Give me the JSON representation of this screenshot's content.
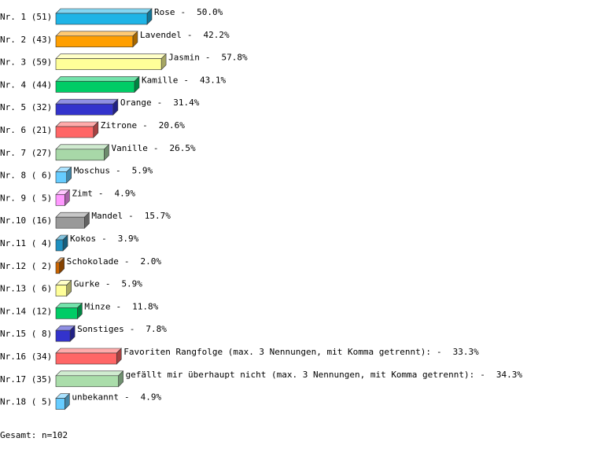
{
  "chart_data": {
    "type": "bar3d",
    "row_labels": [
      "Nr. 1 (51)",
      "Nr. 2 (43)",
      "Nr. 3 (59)",
      "Nr. 4 (44)",
      "Nr. 5 (32)",
      "Nr. 6 (21)",
      "Nr. 7 (27)",
      "Nr. 8 ( 6)",
      "Nr. 9 ( 5)",
      "Nr.10 (16)",
      "Nr.11 ( 4)",
      "Nr.12 ( 2)",
      "Nr.13 ( 6)",
      "Nr.14 (12)",
      "Nr.15 ( 8)",
      "Nr.16 (34)",
      "Nr.17 (35)",
      "Nr.18 ( 5)"
    ],
    "categories": [
      "Rose",
      "Lavendel",
      "Jasmin",
      "Kamille",
      "Orange",
      "Zitrone",
      "Vanille",
      "Moschus",
      "Zimt",
      "Mandel",
      "Kokos",
      "Schokolade",
      "Gurke",
      "Minze",
      "Sonstiges",
      "Favoriten Rangfolge (max. 3 Nennungen, mit Komma getrennt):",
      "gefällt mir überhaupt nicht (max. 3 Nennungen, mit Komma getrennt):",
      "unbekannt"
    ],
    "separator": "-",
    "values": [
      50.0,
      42.2,
      57.8,
      43.1,
      31.4,
      20.6,
      26.5,
      5.9,
      4.9,
      15.7,
      3.9,
      2.0,
      5.9,
      11.8,
      7.8,
      33.3,
      34.3,
      4.9
    ],
    "value_labels": [
      "50.0%",
      "42.2%",
      "57.8%",
      "43.1%",
      "31.4%",
      "20.6%",
      "26.5%",
      "5.9%",
      "4.9%",
      "15.7%",
      "3.9%",
      "2.0%",
      "5.9%",
      "11.8%",
      "7.8%",
      "33.3%",
      "34.3%",
      "4.9%"
    ],
    "colors": [
      "#1fb4e6",
      "#ff9f00",
      "#ffff99",
      "#00cc66",
      "#3333cc",
      "#ff6666",
      "#a8d8a8",
      "#66ccff",
      "#ff99ff",
      "#999999",
      "#1e90c0",
      "#cc6600",
      "#ffff99",
      "#00cc66",
      "#3333cc",
      "#ff6666",
      "#aaddaa",
      "#66ccff"
    ],
    "footer": "Gesamt: n=102"
  }
}
